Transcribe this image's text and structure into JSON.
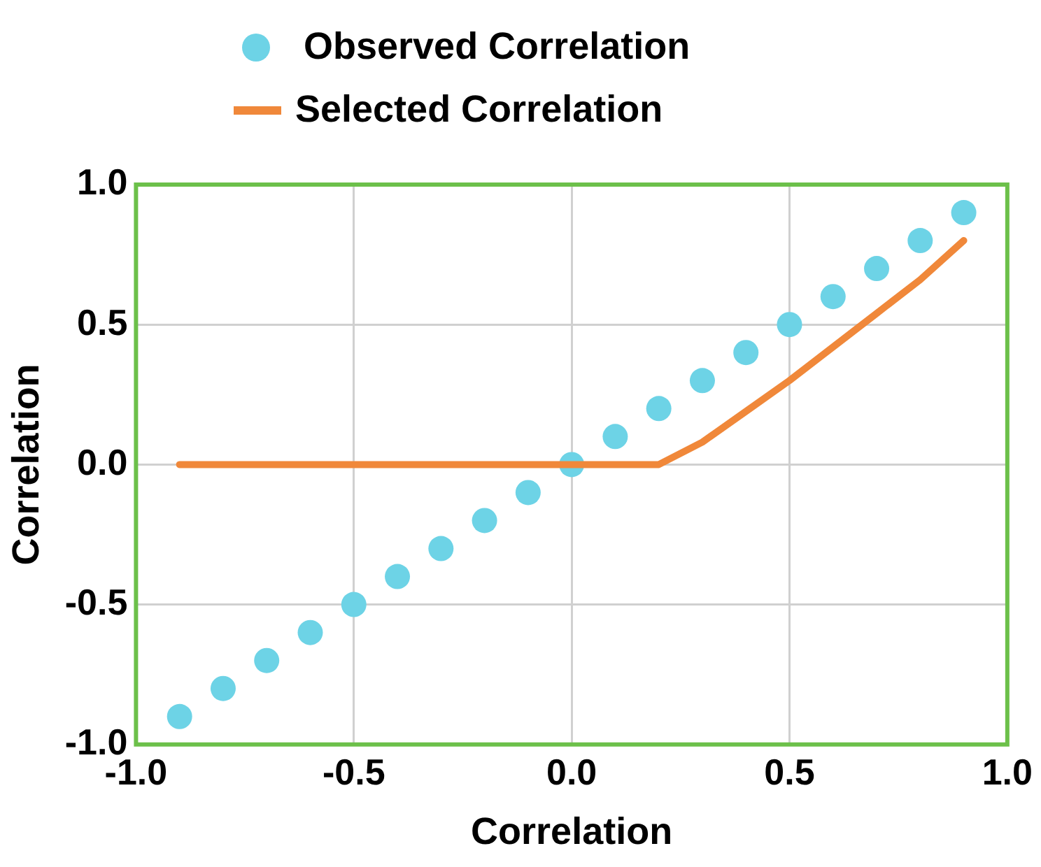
{
  "chart_data": {
    "type": "scatter",
    "xlabel": "Correlation",
    "ylabel": "Correlation",
    "xlim": [
      -1,
      1
    ],
    "xticks": [
      {
        "value": -1,
        "label": "-1.0"
      },
      {
        "value": -0.5,
        "label": "-0.5"
      },
      {
        "value": 0,
        "label": "0.0"
      },
      {
        "value": 0.5,
        "label": "0.5"
      },
      {
        "value": 1,
        "label": "1.0"
      }
    ],
    "ylim": [
      -1,
      1
    ],
    "yticks": [
      {
        "value": -1,
        "label": "-1.0"
      },
      {
        "value": -0.5,
        "label": "-0.5"
      },
      {
        "value": 0,
        "label": "0.0"
      },
      {
        "value": 0.5,
        "label": "0.5"
      },
      {
        "value": 1,
        "label": "1.0"
      }
    ],
    "grid": true,
    "legend": "top",
    "series": [
      {
        "name": "Observed Correlation",
        "type": "scatter",
        "marker": "circle",
        "color": "#6dd3e6",
        "x": [
          -0.9,
          -0.8,
          -0.7,
          -0.6,
          -0.5,
          -0.4,
          -0.3,
          -0.2,
          -0.1,
          0,
          0.1,
          0.2,
          0.3,
          0.4,
          0.5,
          0.6,
          0.7,
          0.8,
          0.9
        ],
        "values": [
          -0.9,
          -0.8,
          -0.7,
          -0.6,
          -0.5,
          -0.4,
          -0.3,
          -0.2,
          -0.1,
          0,
          0.1,
          0.2,
          0.3,
          0.4,
          0.5,
          0.6,
          0.7,
          0.8,
          0.9
        ]
      },
      {
        "name": "Selected Correlation",
        "type": "line",
        "marker": "none",
        "line_style": "solid",
        "color": "#f0883a",
        "x": [
          -0.9,
          -0.8,
          -0.7,
          -0.6,
          -0.5,
          -0.4,
          -0.3,
          -0.2,
          -0.1,
          0,
          0.1,
          0.2,
          0.3,
          0.4,
          0.5,
          0.6,
          0.7,
          0.8,
          0.9
        ],
        "values": [
          0,
          0,
          0,
          0,
          0,
          0,
          0,
          0,
          0,
          0,
          0,
          0,
          0.08,
          0.19,
          0.3,
          0.42,
          0.54,
          0.66,
          0.8
        ]
      }
    ]
  }
}
